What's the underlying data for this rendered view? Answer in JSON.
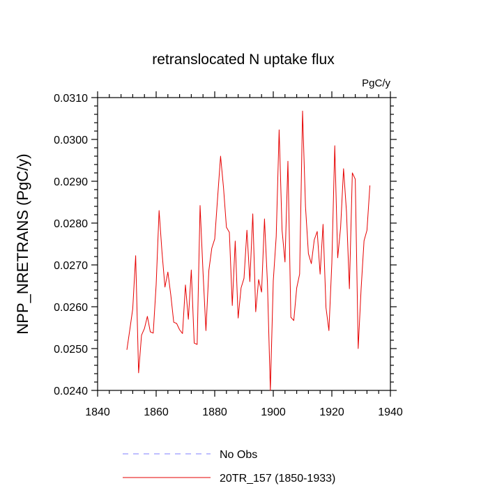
{
  "chart_data": {
    "type": "line",
    "title": "retranslocated N uptake flux",
    "units": "PgC/y",
    "xlabel": "",
    "ylabel": "NPP_NRETRANS  (PgC/y)",
    "xlim": [
      1840,
      1940
    ],
    "ylim": [
      0.024,
      0.031
    ],
    "xticks": [
      "1840",
      "1860",
      "1880",
      "1900",
      "1920",
      "1940"
    ],
    "yticks": [
      "0.0240",
      "0.0250",
      "0.0260",
      "0.0270",
      "0.0280",
      "0.0290",
      "0.0300",
      "0.0310"
    ],
    "grid": false,
    "legend_position": "bottom",
    "series": [
      {
        "name": "20TR_157 (1850-1933)",
        "color": "#e60000",
        "style": "solid",
        "x": [
          1850,
          1851,
          1852,
          1853,
          1854,
          1855,
          1856,
          1857,
          1858,
          1859,
          1860,
          1861,
          1862,
          1863,
          1864,
          1865,
          1866,
          1867,
          1868,
          1869,
          1870,
          1871,
          1872,
          1873,
          1874,
          1875,
          1876,
          1877,
          1878,
          1879,
          1880,
          1881,
          1882,
          1883,
          1884,
          1885,
          1886,
          1887,
          1888,
          1889,
          1890,
          1891,
          1892,
          1893,
          1894,
          1895,
          1896,
          1897,
          1898,
          1899,
          1900,
          1901,
          1902,
          1903,
          1904,
          1905,
          1906,
          1907,
          1908,
          1909,
          1910,
          1911,
          1912,
          1913,
          1914,
          1915,
          1916,
          1917,
          1918,
          1919,
          1920,
          1921,
          1922,
          1923,
          1924,
          1925,
          1926,
          1927,
          1928,
          1929,
          1930,
          1931,
          1932,
          1933
        ],
        "y": [
          0.02497,
          0.02545,
          0.02595,
          0.02722,
          0.02442,
          0.02532,
          0.02548,
          0.02577,
          0.0254,
          0.02537,
          0.02653,
          0.0283,
          0.0273,
          0.02647,
          0.02683,
          0.02628,
          0.02563,
          0.0256,
          0.02545,
          0.02536,
          0.02652,
          0.0257,
          0.02688,
          0.02513,
          0.0251,
          0.02842,
          0.02683,
          0.02543,
          0.02687,
          0.0274,
          0.02762,
          0.02862,
          0.0296,
          0.02885,
          0.0279,
          0.02778,
          0.02603,
          0.02757,
          0.02573,
          0.02645,
          0.02668,
          0.02783,
          0.0266,
          0.02822,
          0.02588,
          0.02665,
          0.02635,
          0.0281,
          0.02658,
          0.024,
          0.02662,
          0.02768,
          0.03023,
          0.02783,
          0.02707,
          0.02948,
          0.02575,
          0.02567,
          0.02645,
          0.02678,
          0.03068,
          0.0284,
          0.02727,
          0.02703,
          0.0276,
          0.0278,
          0.02678,
          0.02797,
          0.02598,
          0.02543,
          0.02705,
          0.02985,
          0.02717,
          0.0279,
          0.0293,
          0.02827,
          0.02643,
          0.0292,
          0.02905,
          0.025,
          0.02643,
          0.02758,
          0.02783,
          0.0289
        ]
      }
    ],
    "legend": [
      {
        "label": "No Obs",
        "color": "#7f7fff",
        "style": "dashed"
      },
      {
        "label": "20TR_157 (1850-1933)",
        "color": "#e60000",
        "style": "solid"
      }
    ]
  }
}
